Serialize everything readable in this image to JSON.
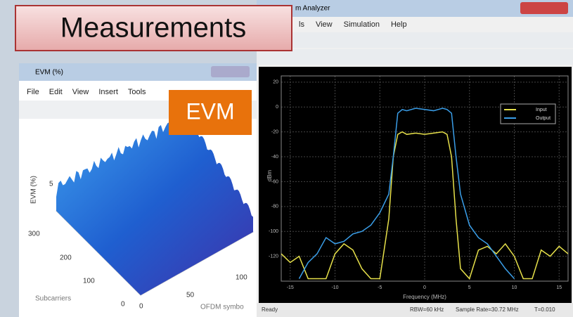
{
  "callouts": {
    "measurements": "Measurements",
    "evm": "EVM"
  },
  "evm_window": {
    "title": "EVM (%)",
    "menu": [
      "File",
      "Edit",
      "View",
      "Insert",
      "Tools"
    ],
    "z_label": "EVM (%)",
    "z_ticks": [
      "5"
    ],
    "y_label": "Subcarriers",
    "y_ticks": [
      "300",
      "200",
      "100",
      "0"
    ],
    "x_label": "OFDM symbo",
    "x_ticks": [
      "0",
      "50",
      "100"
    ]
  },
  "analyzer_window": {
    "title": "m Analyzer",
    "menu": [
      "ls",
      "View",
      "Simulation",
      "Help"
    ],
    "status": [
      "Ready",
      "RBW=60 kHz",
      "Sample Rate=30.72 MHz",
      "T=0.010"
    ]
  },
  "chart_data": {
    "type": "line",
    "x_label": "Frequency (MHz)",
    "y_label": "dBm",
    "x": [
      -16,
      -15,
      -14,
      -13,
      -12,
      -11,
      -10,
      -9,
      -8,
      -7,
      -6,
      -5,
      -4,
      -3.5,
      -3,
      -2.5,
      -2,
      -1,
      0,
      1,
      2,
      2.5,
      3,
      3.5,
      4,
      5,
      6,
      7,
      8,
      9,
      10,
      11,
      12,
      13,
      14,
      15,
      16
    ],
    "series": [
      {
        "name": "Input",
        "color": "#e6e04a",
        "values": [
          -118,
          -125,
          -120,
          -138,
          -138,
          -138,
          -118,
          -110,
          -115,
          -130,
          -138,
          -138,
          -90,
          -40,
          -22,
          -20,
          -22,
          -21,
          -22,
          -21,
          -20,
          -22,
          -40,
          -90,
          -130,
          -138,
          -115,
          -112,
          -118,
          -110,
          -120,
          -138,
          -138,
          -115,
          -120,
          -112,
          -118
        ]
      },
      {
        "name": "Output",
        "color": "#3a9ee8",
        "values": [
          null,
          null,
          -138,
          -125,
          -118,
          -105,
          -110,
          -108,
          -102,
          -100,
          -95,
          -85,
          -70,
          -40,
          -5,
          -2,
          -3,
          -1,
          -2,
          -3,
          -1,
          -2,
          -5,
          -40,
          -70,
          -95,
          -105,
          -110,
          -120,
          -130,
          -138,
          null,
          null,
          null,
          null,
          null,
          null
        ]
      }
    ],
    "xlim": [
      -16,
      16
    ],
    "ylim": [
      -140,
      25
    ],
    "xticks": [
      -15,
      -10,
      -5,
      0,
      5,
      10,
      15
    ],
    "yticks": [
      20,
      0,
      -20,
      -40,
      -60,
      -80,
      -100,
      -120
    ],
    "grid": true,
    "legend": "upper right"
  }
}
